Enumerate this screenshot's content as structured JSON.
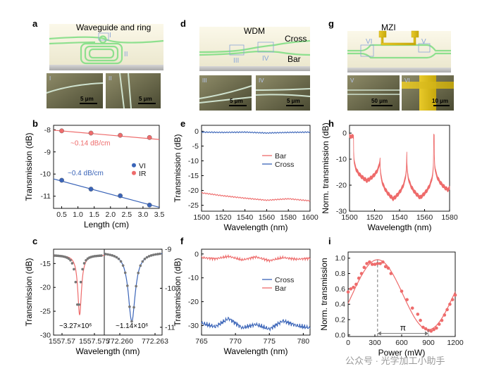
{
  "panels": {
    "a": {
      "letter": "a",
      "title": "Waveguide and ring",
      "markers": [
        "I",
        "II"
      ],
      "sem_labels": [
        "I",
        "II"
      ],
      "scale_bars": [
        "5 μm",
        "5 μm"
      ]
    },
    "d": {
      "letter": "d",
      "title": "WDM",
      "port_labels": [
        "Cross",
        "Bar"
      ],
      "markers": [
        "III",
        "IV"
      ],
      "sem_labels": [
        "III",
        "IV"
      ],
      "scale_bars": [
        "5 μm",
        "5 μm"
      ]
    },
    "g": {
      "letter": "g",
      "title": "MZI",
      "markers": [
        "VI",
        "V"
      ],
      "sem_labels": [
        "V",
        "VI"
      ],
      "scale_bars": [
        "50 μm",
        "10 μm"
      ]
    },
    "b": {
      "letter": "b"
    },
    "c": {
      "letter": "c"
    },
    "e": {
      "letter": "e"
    },
    "f": {
      "letter": "f"
    },
    "h": {
      "letter": "h"
    },
    "i": {
      "letter": "i"
    }
  },
  "watermark": "公众号 · 光学加工小助手",
  "colors": {
    "red": "#ee6b6b",
    "blue": "#3a64b8",
    "grey": "#777777",
    "green": "#8ee08e",
    "gold": "#f2c200"
  },
  "chart_data": [
    {
      "id": "b",
      "type": "scatter",
      "xlabel": "Length (cm)",
      "ylabel": "Transmission (dB)",
      "xlim": [
        0.25,
        3.5
      ],
      "ylim": [
        -11.55,
        -7.8
      ],
      "xticks": [
        "0.5",
        "1.0",
        "1.5",
        "2.0",
        "2.5",
        "3.0",
        "3.5"
      ],
      "yticks": [
        "-8",
        "-9",
        "-10",
        "-11"
      ],
      "series": [
        {
          "name": "VI",
          "color": "#3a64b8",
          "x": [
            0.5,
            1.4,
            2.3,
            3.2
          ],
          "y": [
            -10.28,
            -10.68,
            -10.98,
            -11.4
          ],
          "fit": [
            [
              0.25,
              -10.22
            ],
            [
              3.5,
              -11.5
            ]
          ]
        },
        {
          "name": "IR",
          "color": "#ee6b6b",
          "x": [
            0.5,
            1.4,
            2.3,
            3.2
          ],
          "y": [
            -8.05,
            -8.15,
            -8.25,
            -8.35
          ],
          "fit": [
            [
              0.25,
              -8.02
            ],
            [
              3.5,
              -8.44
            ]
          ]
        }
      ],
      "annotations": [
        "~0.14 dB/cm",
        "~0.4 dB/cm"
      ],
      "legend": "center-right"
    },
    {
      "id": "c",
      "type": "line",
      "xlabel": "Wavelength (nm)",
      "ylabel": "Transmission (dB)",
      "left": {
        "xticks": [
          "1557.57",
          "1557.575"
        ],
        "ylim": [
          -30,
          -12
        ],
        "yticks": [
          "-15",
          "-20",
          "-25",
          "-30"
        ],
        "dip_center": 1557.572,
        "dip_depth_db": -25.8,
        "q": "~3.27×10⁶",
        "color": "#ee6b6b"
      },
      "right": {
        "xticks": [
          "772.260",
          "772.263"
        ],
        "ylim": [
          -11.2,
          -9
        ],
        "yticks": [
          "-9",
          "-10",
          "-11"
        ],
        "dip_center": 772.2607,
        "dip_depth_db": -10.85,
        "q": "~1.14×10⁶",
        "color": "#3a64b8"
      }
    },
    {
      "id": "e",
      "type": "line",
      "xlabel": "Wavelength (nm)",
      "ylabel": "Transmission (dB)",
      "xlim": [
        1500,
        1600
      ],
      "ylim": [
        -27,
        2
      ],
      "xticks": [
        "1500",
        "1520",
        "1540",
        "1560",
        "1580",
        "1600"
      ],
      "yticks": [
        "0",
        "-5",
        "-10",
        "-15",
        "-20",
        "-25"
      ],
      "series": [
        {
          "name": "Bar",
          "color": "#ee6b6b",
          "x": [
            1500,
            1520,
            1540,
            1560,
            1580,
            1600
          ],
          "y": [
            -20.8,
            -21.8,
            -22.6,
            -23.3,
            -22.8,
            -23.5
          ]
        },
        {
          "name": "Cross",
          "color": "#3a64b8",
          "x": [
            1500,
            1520,
            1540,
            1560,
            1580,
            1600
          ],
          "y": [
            -0.3,
            -0.4,
            -0.3,
            -0.6,
            -0.4,
            -0.3
          ]
        }
      ],
      "legend": "center-right"
    },
    {
      "id": "f",
      "type": "line",
      "xlabel": "Wavelength (nm)",
      "ylabel": "Transmission (dB)",
      "xlim": [
        765,
        781
      ],
      "ylim": [
        -34,
        2
      ],
      "xticks": [
        "765",
        "770",
        "775",
        "780"
      ],
      "yticks": [
        "0",
        "-10",
        "-20",
        "-30"
      ],
      "series": [
        {
          "name": "Cross",
          "color": "#3a64b8",
          "x": [
            765,
            767,
            769,
            771,
            773,
            775,
            777,
            779,
            781
          ],
          "y": [
            -29,
            -30.5,
            -27,
            -31,
            -29.5,
            -31.5,
            -28,
            -30,
            -31
          ]
        },
        {
          "name": "Bar",
          "color": "#ee6b6b",
          "x": [
            765,
            767,
            769,
            771,
            773,
            775,
            777,
            779,
            781
          ],
          "y": [
            -1.5,
            -2,
            -1,
            -2.5,
            -1.2,
            -2.8,
            -1.5,
            -2.2,
            -1.8
          ]
        }
      ],
      "legend": "center-right"
    },
    {
      "id": "h",
      "type": "line",
      "xlabel": "Wavelength (nm)",
      "ylabel": "Norm. transmission (dB)",
      "xlim": [
        1500,
        1580
      ],
      "ylim": [
        -30,
        3
      ],
      "xticks": [
        "1500",
        "1520",
        "1540",
        "1560",
        "1580"
      ],
      "yticks": [
        "0",
        "-10",
        "-20",
        "-30"
      ],
      "dips": [
        {
          "x": 1514,
          "y": -18.5
        },
        {
          "x": 1535,
          "y": -25.5
        },
        {
          "x": 1556.5,
          "y": -25
        },
        {
          "x": 1578.5,
          "y": -22
        }
      ],
      "color": "#ee6b6b"
    },
    {
      "id": "i",
      "type": "scatter",
      "xlabel": "Power (mW)",
      "ylabel": "Norm. transmission",
      "xlim": [
        0,
        1200
      ],
      "ylim": [
        -0.02,
        1.08
      ],
      "xticks": [
        "0",
        "300",
        "600",
        "900",
        "1200"
      ],
      "yticks": [
        "0.0",
        "0.2",
        "0.4",
        "0.6",
        "0.8",
        "1.0"
      ],
      "points": {
        "x": [
          0,
          30,
          60,
          90,
          120,
          150,
          180,
          210,
          240,
          270,
          300,
          330,
          360,
          390,
          420,
          450,
          480,
          600,
          660,
          720,
          780,
          810,
          840,
          870,
          900,
          930,
          960,
          990,
          1020,
          1050,
          1080,
          1110,
          1140,
          1170,
          1200
        ],
        "y": [
          0.56,
          0.6,
          0.62,
          0.66,
          0.74,
          0.8,
          0.88,
          0.93,
          0.95,
          0.92,
          0.92,
          0.93,
          0.93,
          0.95,
          0.89,
          0.87,
          0.8,
          0.57,
          0.46,
          0.35,
          0.27,
          0.19,
          0.1,
          0.08,
          0.06,
          0.05,
          0.07,
          0.09,
          0.14,
          0.19,
          0.26,
          0.33,
          0.4,
          0.46,
          0.52
        ]
      },
      "fit": {
        "amplitude": 0.455,
        "offset": 0.525,
        "period_mw": 1140,
        "peak_mw": 330
      },
      "pi_annotation": {
        "label": "π",
        "from": 330,
        "to": 900
      },
      "color": "#ee6b6b"
    }
  ]
}
